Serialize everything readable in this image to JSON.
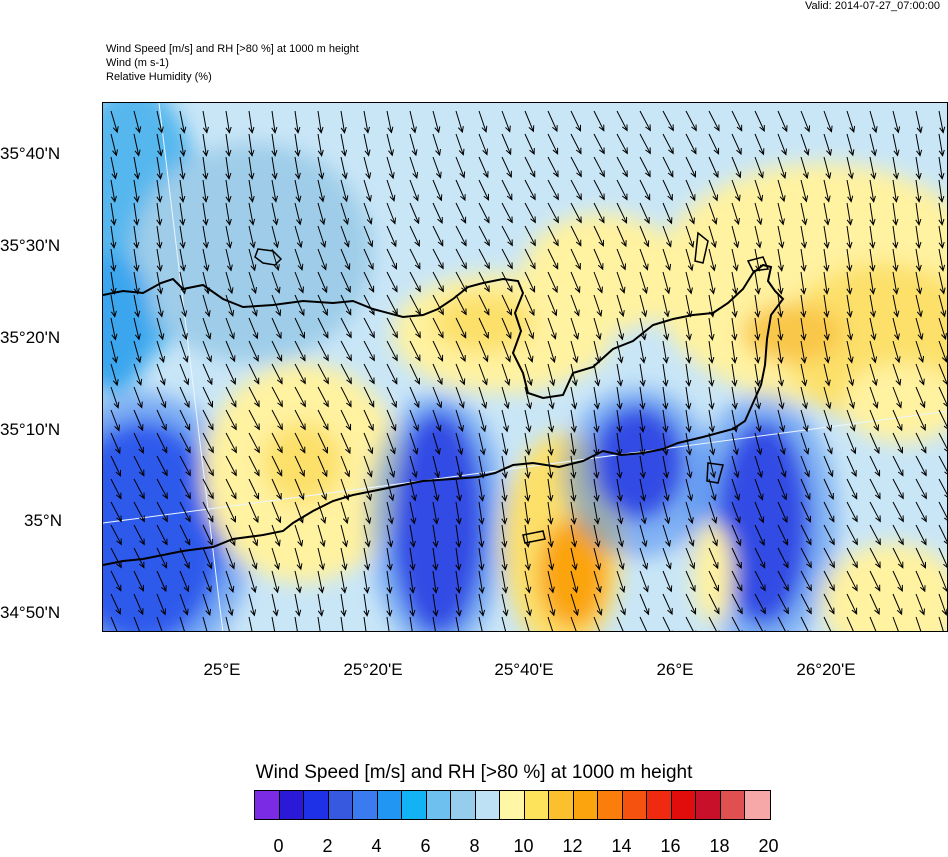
{
  "header": {
    "valid": "Valid: 2014-07-27_07:00:00",
    "title_line1": "Wind Speed [m/s] and RH [>80 %] at 1000 m height",
    "title_line2": "Wind   (m s-1)",
    "title_line3": "Relative Humidity   (%)"
  },
  "map": {
    "lat_labels": [
      "35°40'N",
      "35°30'N",
      "35°20'N",
      "35°10'N",
      "35°N",
      "34°50'N"
    ],
    "lon_labels": [
      "25°E",
      "25°20'E",
      "25°40'E",
      "26°E",
      "26°20'E"
    ],
    "coastline_color": "#000000",
    "vector_color": "#000000"
  },
  "colorbar": {
    "title": "Wind Speed [m/s] and RH [>80 %] at 1000 m height",
    "labels": [
      "0",
      "2",
      "4",
      "6",
      "8",
      "10",
      "12",
      "14",
      "16",
      "18",
      "20"
    ],
    "colors": [
      "#7b2be3",
      "#2a1ad8",
      "#1f31e6",
      "#3759e0",
      "#3a7bf0",
      "#2196f3",
      "#13b2f5",
      "#6ec0ee",
      "#96cdec",
      "#bfe1f5",
      "#fff7a6",
      "#fde25c",
      "#fbc02d",
      "#fba40d",
      "#fb7e0d",
      "#f5520f",
      "#ef2a10",
      "#e10d0d",
      "#c8102a",
      "#e05050",
      "#f6a8a8"
    ]
  }
}
